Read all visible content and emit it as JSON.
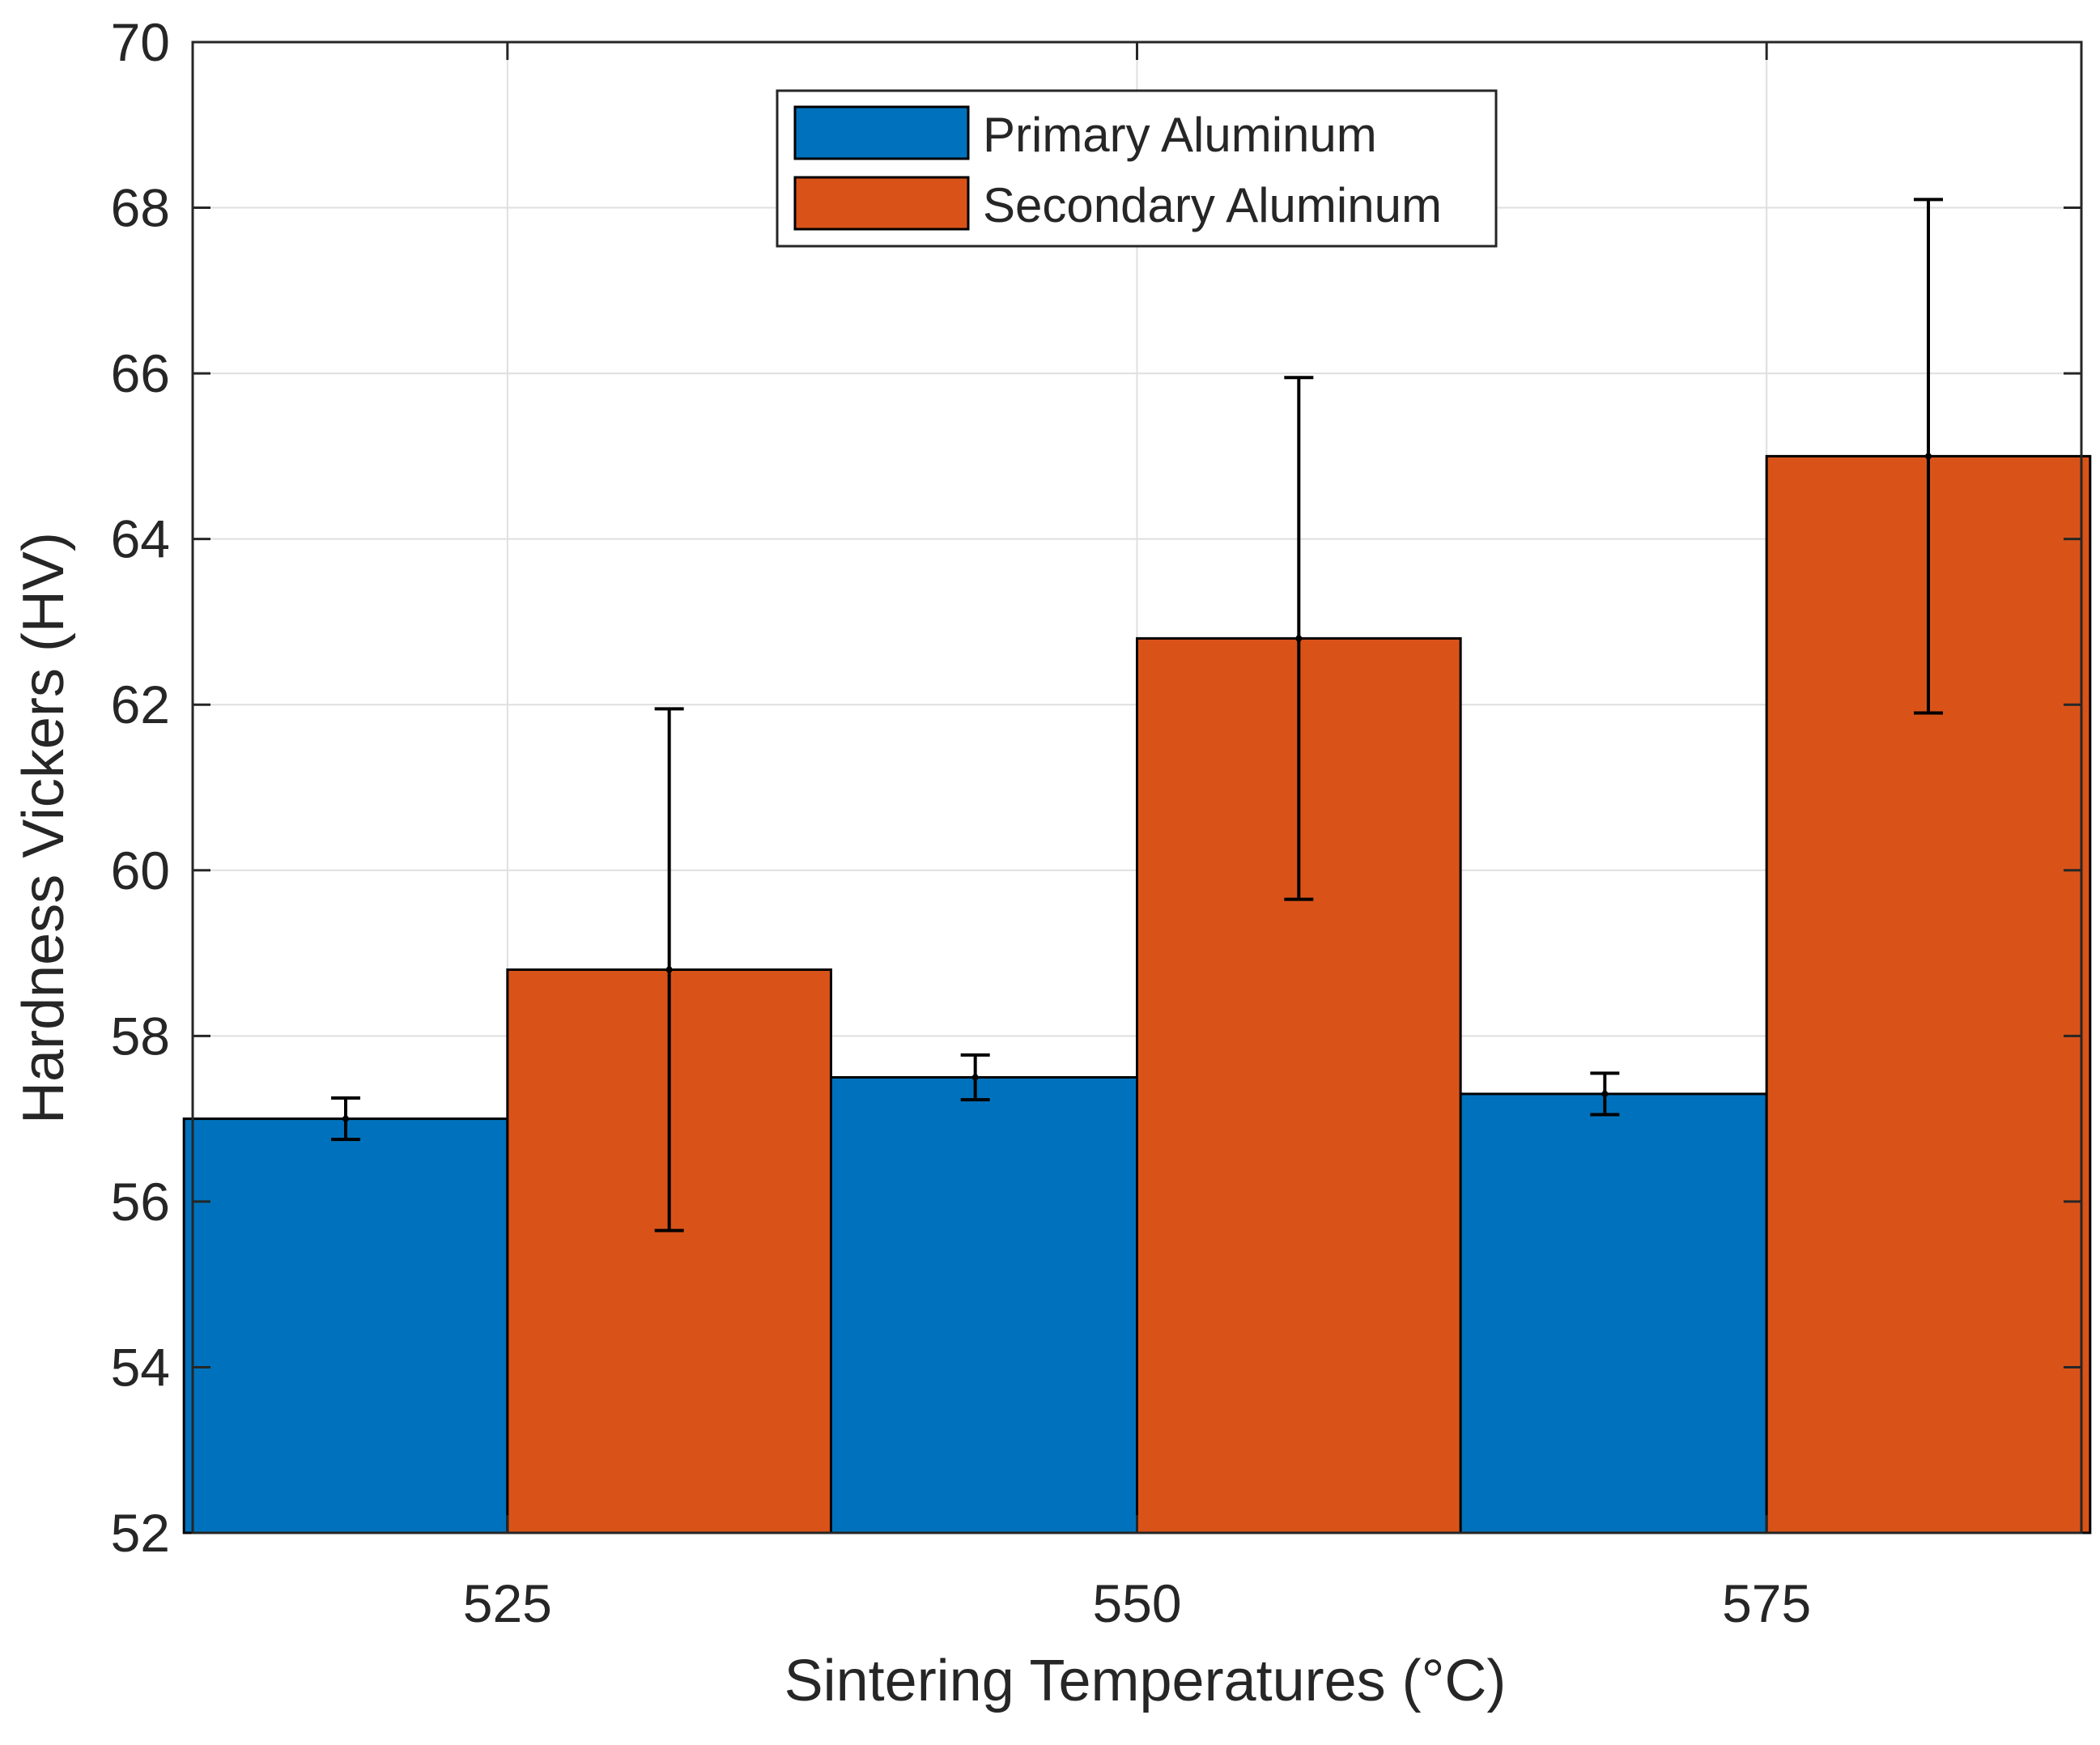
{
  "chart_data": {
    "type": "bar",
    "title": "",
    "xlabel": "Sintering Temperatures (°C)",
    "ylabel": "Hardness Vickers (HV)",
    "categories": [
      "525",
      "550",
      "575"
    ],
    "ylim": [
      52,
      70
    ],
    "yticks": [
      52,
      54,
      56,
      58,
      60,
      62,
      64,
      66,
      68,
      70
    ],
    "ytick_labels": [
      "52",
      "54",
      "56",
      "58",
      "60",
      "62",
      "64",
      "66",
      "68",
      "70"
    ],
    "grid": true,
    "legend_position": "top-center",
    "series": [
      {
        "name": "Primary Aluminum",
        "color": "#0072BD",
        "values": [
          57.0,
          57.5,
          57.3
        ],
        "errors": [
          0.25,
          0.27,
          0.25
        ]
      },
      {
        "name": "Secondary Aluminum",
        "color": "#D95319",
        "values": [
          58.8,
          62.8,
          65.0
        ],
        "errors": [
          3.15,
          3.15,
          3.1
        ]
      }
    ]
  }
}
